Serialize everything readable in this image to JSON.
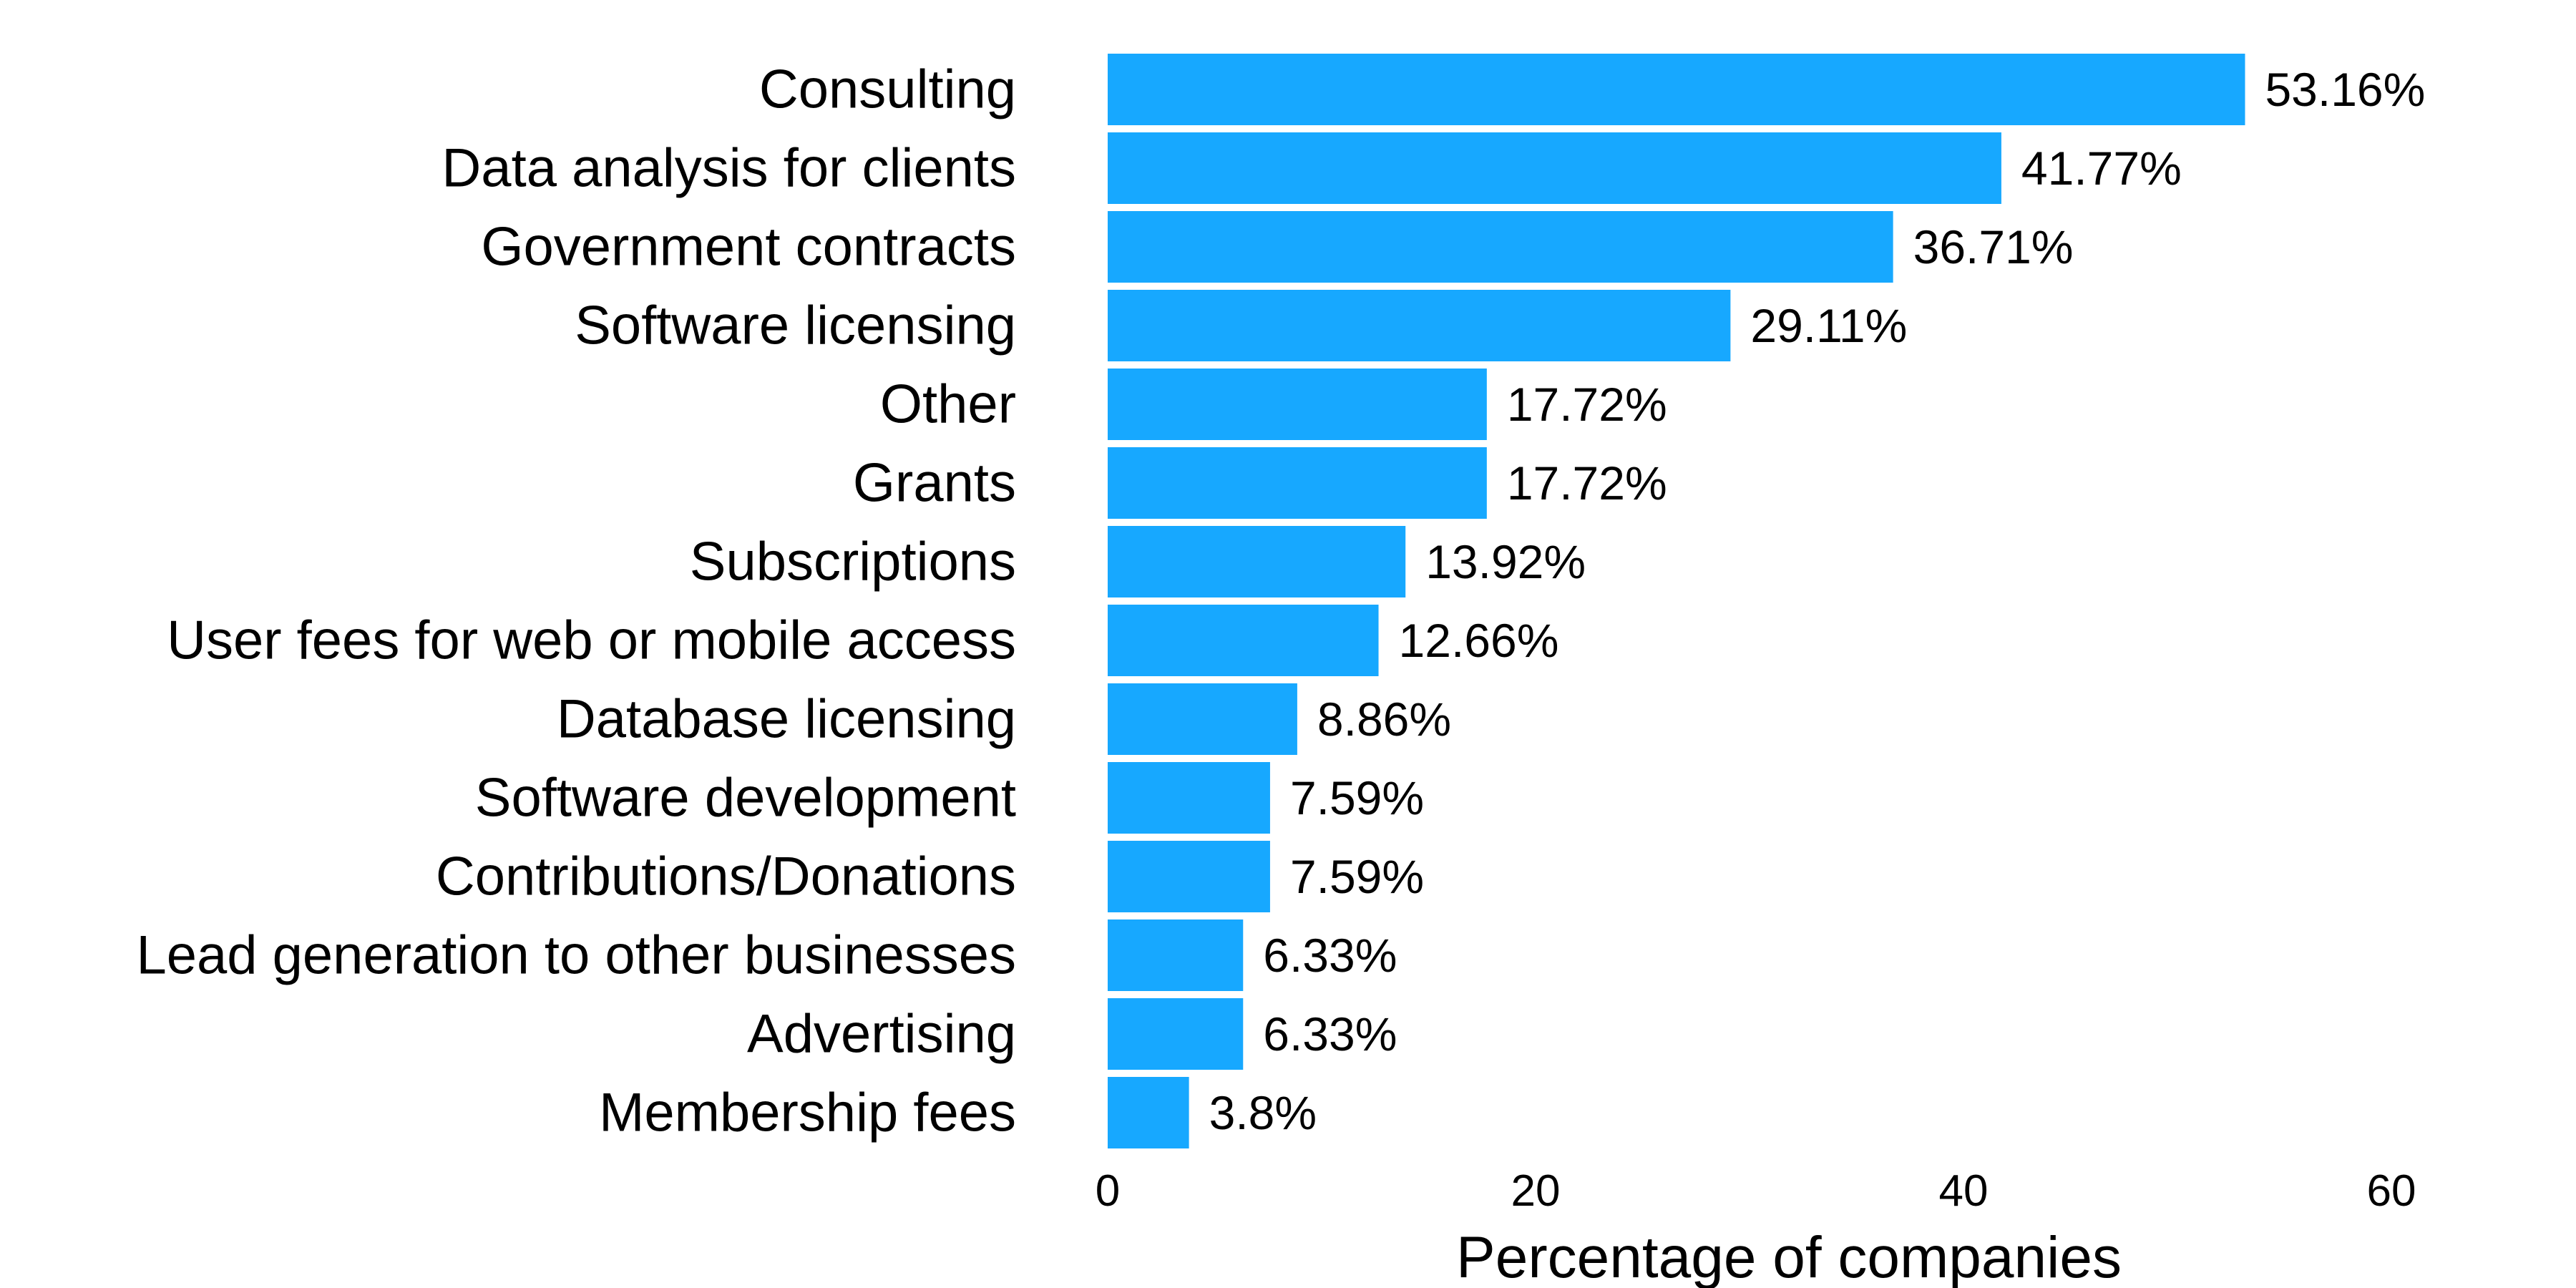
{
  "chart_data": {
    "type": "bar",
    "orientation": "horizontal",
    "categories": [
      "Consulting",
      "Data analysis for clients",
      "Government contracts",
      "Software licensing",
      "Other",
      "Grants",
      "Subscriptions",
      "User fees for web or mobile access",
      "Database licensing",
      "Software development",
      "Contributions/Donations",
      "Lead generation to other businesses",
      "Advertising",
      "Membership fees"
    ],
    "values": [
      53.16,
      41.77,
      36.71,
      29.11,
      17.72,
      17.72,
      13.92,
      12.66,
      8.86,
      7.59,
      7.59,
      6.33,
      6.33,
      3.8
    ],
    "value_labels": [
      "53.16%",
      "41.77%",
      "36.71%",
      "29.11%",
      "17.72%",
      "17.72%",
      "13.92%",
      "12.66%",
      "8.86%",
      "7.59%",
      "7.59%",
      "6.33%",
      "6.33%",
      "3.8%"
    ],
    "xlabel": "Percentage of companies",
    "ylabel": "",
    "xlim": [
      0,
      60
    ],
    "xticks": [
      0,
      20,
      40,
      60
    ],
    "grid": false,
    "bar_color": "#17a8ff"
  }
}
